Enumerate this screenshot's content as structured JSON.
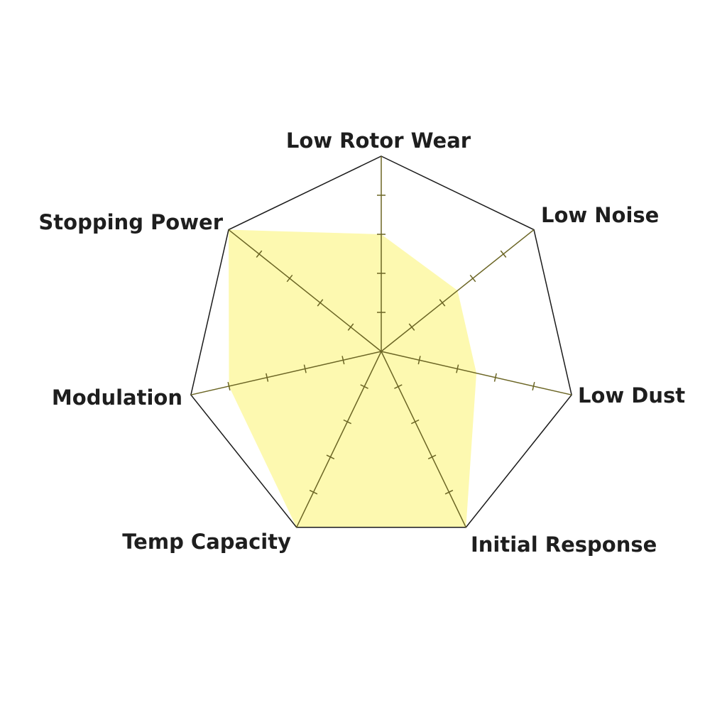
{
  "chart_data": {
    "type": "radar",
    "title": "",
    "categories": [
      "Low Rotor Wear",
      "Low Noise",
      "Low Dust",
      "Initial Response",
      "Temp Capacity",
      "Modulation",
      "Stopping Power"
    ],
    "values": [
      3,
      2.5,
      2.5,
      5,
      5,
      4,
      5
    ],
    "range": [
      0,
      5
    ],
    "tick_step": 1,
    "grid": true,
    "colors": {
      "fill": "#fdf9b0",
      "axis": "#6b6524",
      "outline": "#1a1a1a"
    }
  }
}
